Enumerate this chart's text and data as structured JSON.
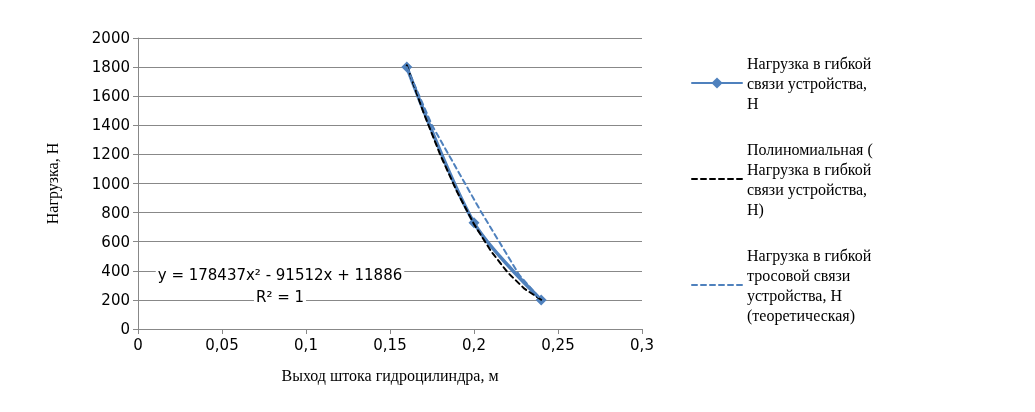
{
  "chart_data": {
    "type": "line",
    "xlabel": "Выход штока гидроцилиндра, м",
    "ylabel": "Нагрузка, Н",
    "xlim": [
      0,
      0.3
    ],
    "xticks": [
      {
        "value": 0,
        "label": "0"
      },
      {
        "value": 0.05,
        "label": "0,05"
      },
      {
        "value": 0.1,
        "label": "0,1"
      },
      {
        "value": 0.15,
        "label": "0,15"
      },
      {
        "value": 0.2,
        "label": "0,2"
      },
      {
        "value": 0.25,
        "label": "0,25"
      },
      {
        "value": 0.3,
        "label": "0,3"
      }
    ],
    "ylim": [
      0,
      2000
    ],
    "yticks": [
      0,
      200,
      400,
      600,
      800,
      1000,
      1200,
      1400,
      1600,
      1800,
      2000
    ],
    "grid": "y",
    "legend": "right",
    "annotations": [
      "y = 178437x² - 91512x + 11886",
      "R² = 1"
    ],
    "series": [
      {
        "name": "Нагрузка в гибкой связи устройства, Н",
        "color": "#4f81bd",
        "marker": "diamond",
        "line_style": "solid",
        "x": [
          0.16,
          0.2,
          0.24
        ],
        "values": [
          1800,
          730,
          200
        ]
      },
      {
        "name": "Полиномиальная ( Нагрузка в гибкой связи устройства, Н)",
        "color": "#000000",
        "marker": "none",
        "line_style": "dashed",
        "x": [
          0.16,
          0.17,
          0.18,
          0.19,
          0.2,
          0.21,
          0.22,
          0.23,
          0.24
        ],
        "values": [
          1812,
          1486,
          1195,
          941,
          721,
          537,
          389,
          277,
          201
        ]
      },
      {
        "name": "Нагрузка в гибкой тросовой связи устройства, Н (теоретическая)",
        "color": "#4f81bd",
        "marker": "none",
        "line_style": "dashed",
        "x": [
          0.16,
          0.175,
          0.204,
          0.227,
          0.24
        ],
        "values": [
          1800,
          1400,
          810,
          370,
          200
        ]
      }
    ]
  }
}
